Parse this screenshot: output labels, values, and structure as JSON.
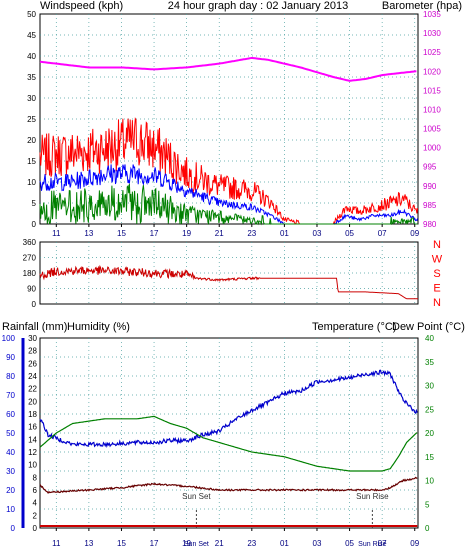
{
  "chart_data": [
    {
      "type": "line",
      "title": "24 hour graph day : 02 January 2013",
      "left_label": "Windspeed (kph)",
      "right_label": "Barometer (hpa)",
      "x_ticks": [
        "11",
        "13",
        "15",
        "17",
        "19",
        "21",
        "23",
        "01",
        "03",
        "05",
        "07",
        "09"
      ],
      "y_ticks": [
        "0",
        "5",
        "10",
        "15",
        "20",
        "25",
        "30",
        "35",
        "40",
        "45",
        "50"
      ],
      "y2_ticks": [
        "980",
        "985",
        "990",
        "995",
        "1000",
        "1005",
        "1010",
        "1015",
        "1020",
        "1025",
        "1030",
        "1035"
      ],
      "ylim": [
        0,
        50
      ],
      "y2lim": [
        980,
        1035
      ],
      "grid": true,
      "colors": {
        "gust": "#ff0000",
        "avg": "#0000ff",
        "lull": "#008000",
        "barometer": "#ff00ff",
        "title": "#0000cc",
        "left_label": "#ff0000",
        "right_label": "#cc00cc"
      },
      "series": [
        {
          "key": "gust",
          "hours": [
            10,
            12,
            14,
            16,
            17.5,
            19,
            21,
            23,
            24.2,
            25,
            26,
            27,
            28,
            28.8,
            29.5,
            30.5,
            31.5,
            32.3,
            33.1
          ],
          "values": [
            16,
            17,
            18,
            20,
            17,
            12,
            9,
            8,
            5,
            1,
            0,
            0,
            0,
            4,
            3,
            4,
            5,
            6,
            3
          ]
        },
        {
          "key": "avg",
          "hours": [
            10,
            12,
            14,
            16,
            17.5,
            19,
            21,
            23,
            24.2,
            25,
            26,
            27,
            28,
            28.8,
            29.5,
            30.5,
            31.5,
            32.3,
            33.1
          ],
          "values": [
            10,
            10,
            12,
            12,
            11,
            8,
            5,
            4,
            2,
            0,
            0,
            0,
            0,
            2,
            1,
            2,
            2,
            3,
            1
          ]
        },
        {
          "key": "lull",
          "hours": [
            10,
            12,
            14,
            16,
            17.5,
            19,
            21,
            23,
            24.2,
            25,
            26,
            27,
            28,
            28.8,
            29.5,
            30.5,
            31.5,
            32.3,
            33.1
          ],
          "values": [
            5,
            5,
            6,
            6,
            5,
            3,
            2,
            1,
            0,
            0,
            0,
            0,
            0,
            0,
            0,
            0,
            0,
            1,
            0
          ]
        },
        {
          "key": "barometer",
          "axis": "right",
          "hours": [
            10,
            11,
            13,
            15,
            17,
            19,
            21,
            23,
            24,
            26,
            28,
            29,
            30,
            31,
            32,
            33.1
          ],
          "values": [
            1022.5,
            1022,
            1021,
            1021,
            1020.5,
            1021,
            1022,
            1023.5,
            1023,
            1021,
            1018.5,
            1017.5,
            1018,
            1019,
            1019.5,
            1020
          ]
        }
      ]
    },
    {
      "type": "line",
      "right_label": "NWSEN",
      "x_ticks": [
        "11",
        "13",
        "15",
        "17",
        "19",
        "21",
        "23",
        "01",
        "03",
        "05",
        "07",
        "09"
      ],
      "y_ticks": [
        "0",
        "90",
        "180",
        "270",
        "360"
      ],
      "ylim": [
        0,
        360
      ],
      "grid": true,
      "colors": {
        "direction": "#cc0000",
        "right_label": "#ff0000"
      },
      "series": [
        {
          "key": "direction",
          "hours": [
            10,
            11,
            13,
            15,
            17,
            19,
            19.5,
            21,
            23,
            25,
            27,
            28.2,
            28.3,
            30,
            32,
            32.5,
            33.1
          ],
          "values": [
            165,
            190,
            195,
            190,
            180,
            170,
            150,
            140,
            150,
            150,
            150,
            150,
            70,
            70,
            60,
            30,
            30
          ]
        }
      ]
    },
    {
      "type": "line",
      "labels_left": [
        "Rainfall (mm)",
        "Humidity (%)"
      ],
      "labels_right": [
        "Temperature (°C)",
        "Dew Point (°C)"
      ],
      "x_ticks": [
        "11",
        "13",
        "15",
        "17",
        "19",
        "21",
        "23",
        "01",
        "03",
        "05",
        "07",
        "09"
      ],
      "x_markers": [
        "Sun Set",
        "Sun Rise"
      ],
      "marker_tick_text": [
        "Sun Set",
        "Sun Rise"
      ],
      "humidity_ticks": [
        "0",
        "10",
        "20",
        "30",
        "40",
        "50",
        "60",
        "70",
        "80",
        "90",
        "100"
      ],
      "rain_ticks": [
        "0",
        "2",
        "4",
        "6",
        "8",
        "10",
        "12",
        "14",
        "16",
        "18",
        "20",
        "22",
        "24",
        "26",
        "28",
        "30"
      ],
      "temp_ticks": [
        "0",
        "5",
        "10",
        "15",
        "20",
        "25",
        "30",
        "35",
        "40"
      ],
      "humidity_lim": [
        0,
        100
      ],
      "temp_lim": [
        0,
        40
      ],
      "grid": true,
      "colors": {
        "humidity": "#0000cc",
        "temperature": "#008000",
        "dewpoint": "#660000",
        "rainfall": "#cc0000",
        "left_axis": "#0000cc",
        "temp_axis": "#008000",
        "markers": "#333333"
      },
      "series": [
        {
          "key": "humidity",
          "axis": "humidity",
          "hours": [
            10,
            10.5,
            12,
            14,
            16,
            17,
            18,
            19,
            20,
            21,
            22,
            23,
            24,
            25,
            26,
            27,
            28,
            29,
            30,
            31,
            31.5,
            32.3,
            33.1
          ],
          "values": [
            58,
            49,
            44,
            44,
            45,
            45,
            46,
            46,
            49,
            51,
            57,
            62,
            66,
            71,
            72,
            77,
            78,
            79,
            81,
            82,
            81,
            67,
            61
          ]
        },
        {
          "key": "temperature",
          "axis": "temp",
          "hours": [
            10,
            11,
            12,
            14,
            16,
            17,
            18,
            19,
            20,
            21,
            23,
            25,
            27,
            29,
            30,
            31,
            31.5,
            32,
            32.5,
            33.1
          ],
          "values": [
            17,
            20,
            22,
            23,
            23,
            23.5,
            22,
            21,
            19,
            18,
            16,
            15,
            13,
            12,
            12,
            12,
            12.5,
            15,
            18,
            20
          ]
        },
        {
          "key": "dewpoint",
          "axis": "temp",
          "hours": [
            10,
            10.5,
            13,
            15,
            17,
            18,
            19,
            21,
            23,
            25,
            27,
            29,
            31,
            31.5,
            32.3,
            33.1
          ],
          "values": [
            9,
            7.5,
            8,
            8.5,
            9.3,
            9,
            8.8,
            8,
            8,
            8,
            8,
            8,
            8,
            8.5,
            10,
            10.5
          ]
        },
        {
          "key": "rainfall",
          "axis": "rain",
          "hours": [
            10,
            33.1
          ],
          "values": [
            0,
            0
          ]
        }
      ]
    }
  ]
}
